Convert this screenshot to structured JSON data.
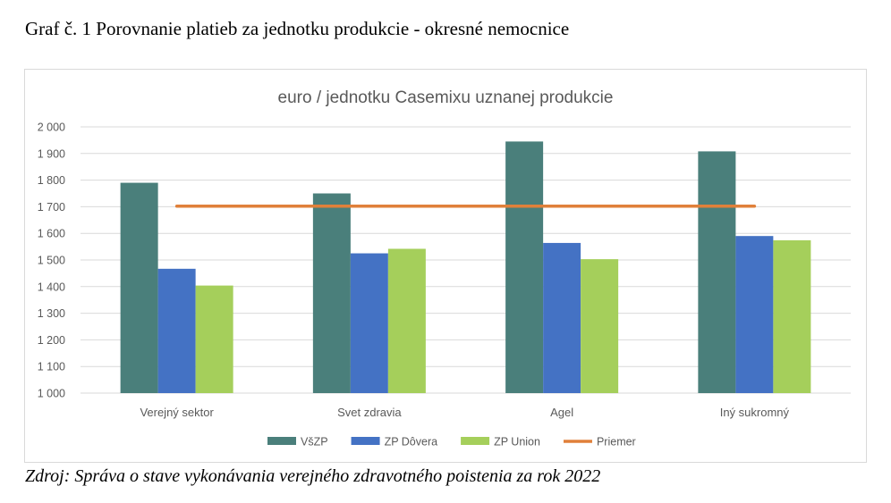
{
  "document": {
    "title": "Graf č. 1 Porovnanie platieb za jednotku produkcie - okresné nemocnice",
    "source": "Zdroj: Správa o stave vykonávania verejného zdravotného poistenia za rok 2022"
  },
  "chart_data": {
    "type": "bar",
    "title": "euro / jednotku Casemixu uznanej produkcie",
    "xlabel": "",
    "ylabel": "",
    "ylim": [
      1000,
      2000
    ],
    "yticks": [
      1000,
      1100,
      1200,
      1300,
      1400,
      1500,
      1600,
      1700,
      1800,
      1900,
      2000
    ],
    "ytick_labels": [
      "1 000",
      "1 100",
      "1 200",
      "1 300",
      "1 400",
      "1 500",
      "1 600",
      "1 700",
      "1 800",
      "1 900",
      "2 000"
    ],
    "categories": [
      "Verejný sektor",
      "Svet zdravia",
      "Agel",
      "Iný sukromný"
    ],
    "series": [
      {
        "name": "VšZP",
        "values": [
          1790,
          1750,
          1945,
          1908
        ],
        "color": "#4a7f7b"
      },
      {
        "name": "ZP Dôvera",
        "values": [
          1467,
          1525,
          1564,
          1590
        ],
        "color": "#4472c4"
      },
      {
        "name": "ZP Union",
        "values": [
          1404,
          1542,
          1503,
          1574
        ],
        "color": "#a5cf5b"
      }
    ],
    "line_series": {
      "name": "Priemer",
      "values": [
        1702,
        1702,
        1702,
        1702
      ],
      "color": "#e0803a"
    },
    "grid": true,
    "gridline_color": "#d9d9d9",
    "legend": "bottom"
  }
}
